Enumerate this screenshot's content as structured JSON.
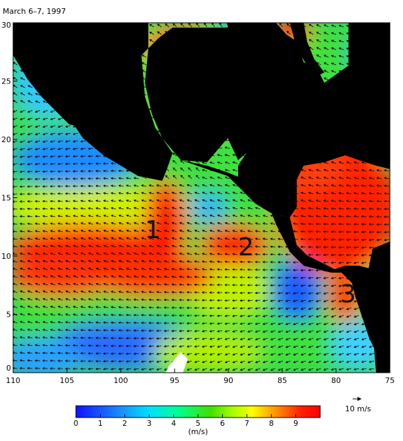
{
  "title": "March 6–7, 1997",
  "map": {
    "lon_ticks": [
      "110",
      "105",
      "100",
      "95",
      "90",
      "85",
      "80",
      "75"
    ],
    "lat_ticks": [
      "0",
      "5",
      "10",
      "15",
      "20",
      "25",
      "30"
    ],
    "lon_range": [
      110,
      75
    ],
    "lat_range": [
      0,
      30
    ],
    "markers": [
      "1",
      "2",
      "3"
    ],
    "land_color": "#000000"
  },
  "colorbar": {
    "ticks": [
      "0",
      "1",
      "2",
      "3",
      "4",
      "5",
      "6",
      "7",
      "8",
      "9"
    ],
    "unit": "(m/s)",
    "range": [
      0,
      10
    ]
  },
  "reference_vector": {
    "label": "10 m/s"
  }
}
